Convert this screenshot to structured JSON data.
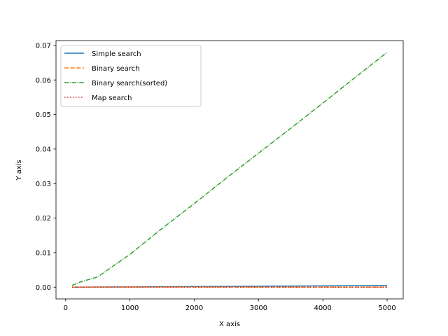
{
  "chart_data": {
    "type": "line",
    "title": "",
    "xlabel": "X axis",
    "ylabel": "Y axis",
    "xlim": [
      -150,
      5250
    ],
    "ylim": [
      -0.0034,
      0.0714
    ],
    "xticks": [
      0,
      1000,
      2000,
      3000,
      4000,
      5000
    ],
    "xtick_labels": [
      "0",
      "1000",
      "2000",
      "3000",
      "4000",
      "5000"
    ],
    "yticks": [
      0.0,
      0.01,
      0.02,
      0.03,
      0.04,
      0.05,
      0.06,
      0.07
    ],
    "ytick_labels": [
      "0.00",
      "0.01",
      "0.02",
      "0.03",
      "0.04",
      "0.05",
      "0.06",
      "0.07"
    ],
    "grid": false,
    "legend_position": "top-left",
    "series": [
      {
        "name": "Simple search",
        "color": "#1f77b4",
        "style": "solid",
        "x": [
          100,
          500,
          1000,
          1500,
          2000,
          2500,
          3000,
          3500,
          4000,
          4500,
          5000
        ],
        "y": [
          5e-06,
          4e-05,
          8e-05,
          0.00013,
          0.00018,
          0.00023,
          0.00028,
          0.00033,
          0.00038,
          0.00043,
          0.0005
        ]
      },
      {
        "name": "Binary search",
        "color": "#ff7f0e",
        "style": "dashed",
        "x": [
          100,
          500,
          1000,
          1500,
          2000,
          2500,
          3000,
          3500,
          4000,
          4500,
          5000
        ],
        "y": [
          1e-05,
          1e-05,
          1e-05,
          1e-05,
          1e-05,
          1e-05,
          1e-05,
          1e-05,
          1e-05,
          1e-05,
          1e-05
        ]
      },
      {
        "name": "Binary search(sorted)",
        "color": "#2ca02c",
        "style": "dashdot",
        "x": [
          100,
          200,
          300,
          400,
          500,
          700,
          1000,
          1500,
          2000,
          2500,
          3000,
          3500,
          4000,
          4500,
          5000
        ],
        "y": [
          0.0005,
          0.0013,
          0.0019,
          0.0024,
          0.003,
          0.0056,
          0.0095,
          0.017,
          0.0242,
          0.0316,
          0.0388,
          0.046,
          0.0533,
          0.0607,
          0.068
        ]
      },
      {
        "name": "Map search",
        "color": "#d62728",
        "style": "dotted",
        "x": [
          100,
          500,
          1000,
          1500,
          2000,
          2500,
          3000,
          3500,
          4000,
          4500,
          5000
        ],
        "y": [
          2e-06,
          2e-06,
          2e-06,
          2e-06,
          2e-06,
          2e-06,
          2e-06,
          2e-06,
          2e-06,
          2e-06,
          2e-06
        ]
      }
    ]
  }
}
